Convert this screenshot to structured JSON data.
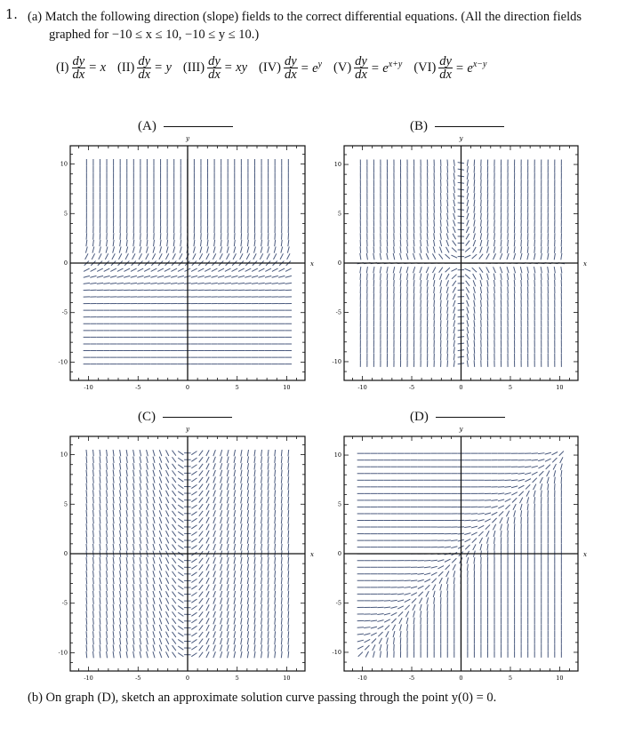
{
  "question": {
    "number": "1.",
    "part_a_label": "(a)",
    "part_a_line1": "Match the following direction (slope) fields to the correct differential equations. (All the direction fields",
    "part_a_line2": "graphed for −10 ≤ x ≤ 10, −10 ≤ y ≤ 10.)",
    "part_b_label": "(b)",
    "part_b_text": "On graph (D), sketch an approximate solution curve passing through the point y(0) = 0."
  },
  "equations": [
    {
      "label": "(I)",
      "lhs_num": "dy",
      "lhs_den": "dx",
      "rhs": "= x"
    },
    {
      "label": "(II)",
      "lhs_num": "dy",
      "lhs_den": "dx",
      "rhs": "= y"
    },
    {
      "label": "(III)",
      "lhs_num": "dy",
      "lhs_den": "dx",
      "rhs": "= xy"
    },
    {
      "label": "(IV)",
      "lhs_num": "dy",
      "lhs_den": "dx",
      "rhs": "= e",
      "sup": "y"
    },
    {
      "label": "(V)",
      "lhs_num": "dy",
      "lhs_den": "dx",
      "rhs": "= e",
      "sup": "x+y"
    },
    {
      "label": "(VI)",
      "lhs_num": "dy",
      "lhs_den": "dx",
      "rhs": "= e",
      "sup": "x−y"
    }
  ],
  "graphs": [
    {
      "label": "(A)",
      "field": "exp_y"
    },
    {
      "label": "(B)",
      "field": "xy"
    },
    {
      "label": "(C)",
      "field": "x"
    },
    {
      "label": "(D)",
      "field": "exp_x_minus_y"
    }
  ],
  "axes": {
    "x_label": "x",
    "y_label": "y",
    "x_ticks": [
      "-10",
      "-5",
      "0",
      "5",
      "10"
    ],
    "y_ticks": [
      "10",
      "5",
      "0",
      "-5",
      "-10"
    ],
    "range": [
      -10,
      10
    ]
  },
  "colors": {
    "field": "#4a5a7e",
    "axis": "#111111",
    "frame": "#111111"
  },
  "chart_data": [
    {
      "type": "direction-field",
      "title": "(A)",
      "equation": "dy/dx = e^y",
      "xlabel": "x",
      "ylabel": "y",
      "xlim": [
        -10,
        10
      ],
      "ylim": [
        -10,
        10
      ]
    },
    {
      "type": "direction-field",
      "title": "(B)",
      "equation": "dy/dx = xy",
      "xlabel": "x",
      "ylabel": "y",
      "xlim": [
        -10,
        10
      ],
      "ylim": [
        -10,
        10
      ]
    },
    {
      "type": "direction-field",
      "title": "(C)",
      "equation": "dy/dx = x",
      "xlabel": "x",
      "ylabel": "y",
      "xlim": [
        -10,
        10
      ],
      "ylim": [
        -10,
        10
      ]
    },
    {
      "type": "direction-field",
      "title": "(D)",
      "equation": "dy/dx = e^(x−y)",
      "xlabel": "x",
      "ylabel": "y",
      "xlim": [
        -10,
        10
      ],
      "ylim": [
        -10,
        10
      ]
    }
  ]
}
